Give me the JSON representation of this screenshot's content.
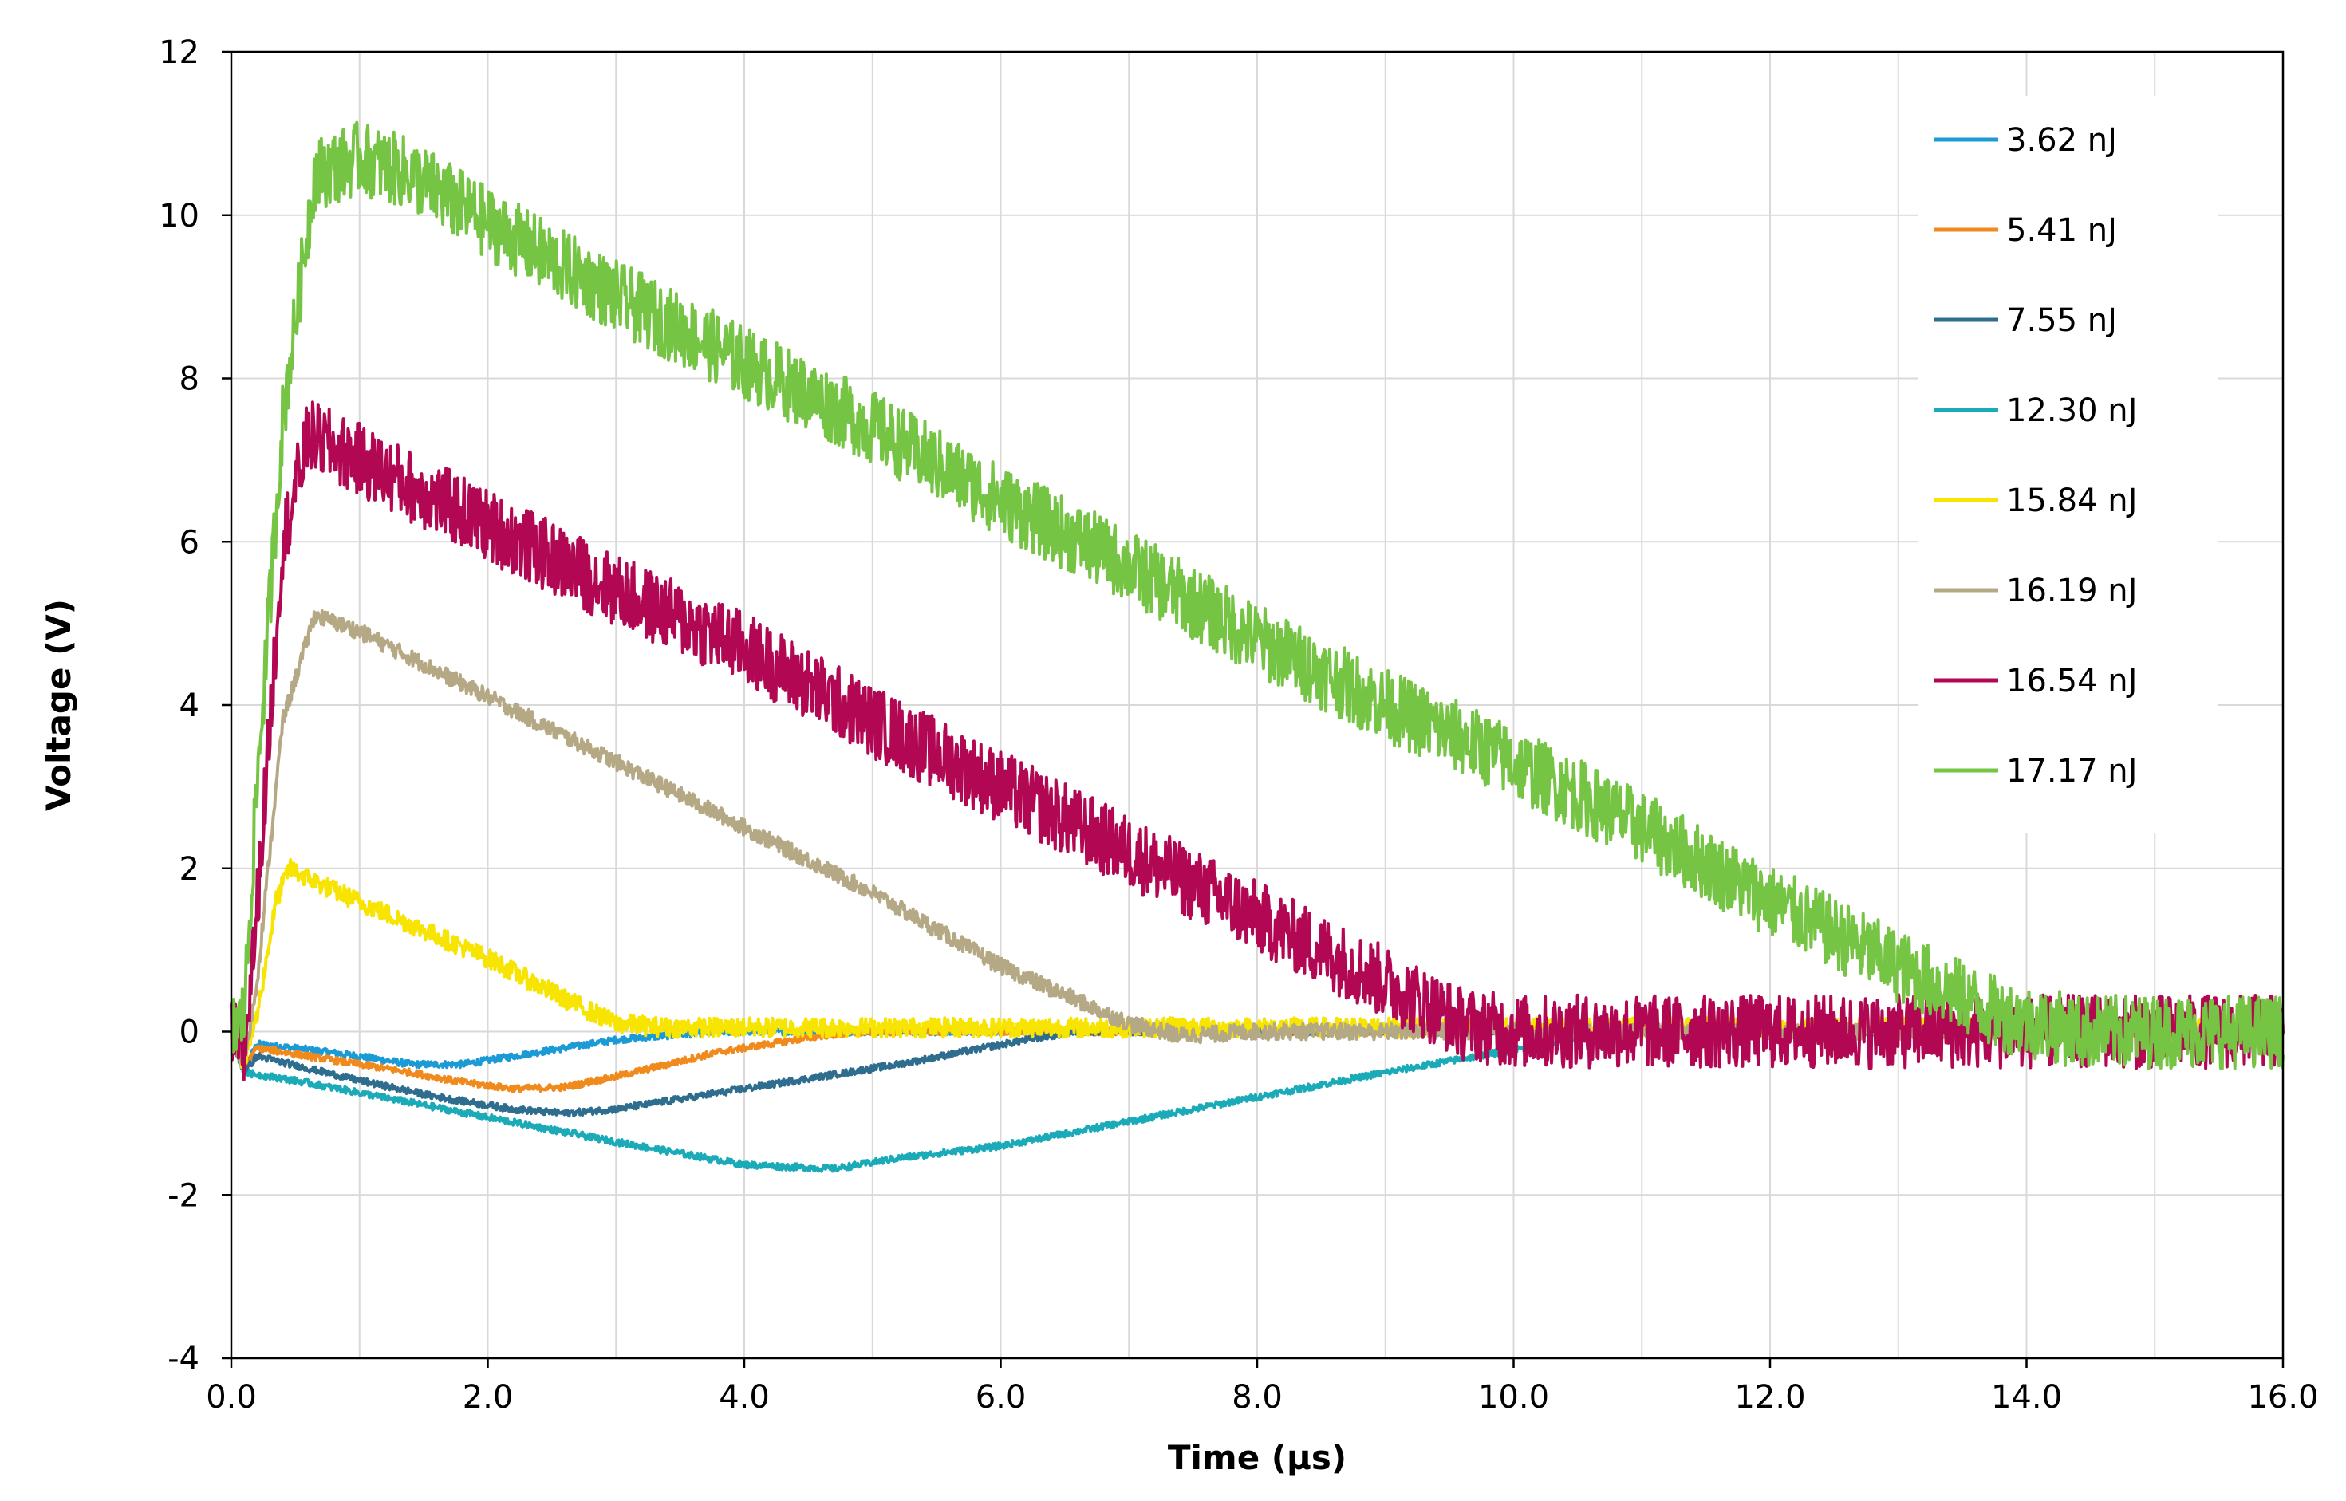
{
  "chart_data": {
    "type": "line",
    "title": "",
    "xlabel": "Time (µs)",
    "ylabel": "Voltage (V)",
    "xlim": [
      0,
      16
    ],
    "ylim": [
      -4,
      12
    ],
    "x_ticks": [
      0,
      2,
      4,
      6,
      8,
      10,
      12,
      14,
      16
    ],
    "x_tick_labels": [
      "0.0",
      "2.0",
      "4.0",
      "6.0",
      "8.0",
      "10.0",
      "12.0",
      "14.0",
      "16.0"
    ],
    "y_ticks": [
      -4,
      -2,
      0,
      2,
      4,
      6,
      8,
      10,
      12
    ],
    "y_tick_labels": [
      "-4",
      "-2",
      "0",
      "2",
      "4",
      "6",
      "8",
      "10",
      "12"
    ],
    "x_minor_gridlines_step": 1,
    "grid": true,
    "legend_position": "top-right",
    "series": [
      {
        "name": "3.62 nJ",
        "color": "#1B9AD6",
        "noise": 0.04,
        "x": [
          0,
          0.05,
          0.1,
          0.2,
          0.6,
          1.0,
          1.4,
          1.8,
          2.2,
          2.6,
          3.0,
          3.4,
          3.8,
          4.2,
          16.0
        ],
        "y": [
          0,
          -0.3,
          -0.45,
          -0.15,
          -0.22,
          -0.3,
          -0.4,
          -0.4,
          -0.3,
          -0.2,
          -0.1,
          -0.05,
          0,
          0,
          0
        ]
      },
      {
        "name": "5.41 nJ",
        "color": "#F08A1C",
        "noise": 0.04,
        "x": [
          0,
          0.05,
          0.1,
          0.2,
          0.6,
          1.0,
          1.4,
          1.8,
          2.2,
          2.6,
          3.0,
          3.4,
          3.8,
          4.2,
          4.6,
          5.0,
          16.0
        ],
        "y": [
          0,
          -0.3,
          -0.45,
          -0.2,
          -0.3,
          -0.4,
          -0.5,
          -0.62,
          -0.7,
          -0.68,
          -0.55,
          -0.4,
          -0.25,
          -0.15,
          -0.05,
          0,
          0
        ]
      },
      {
        "name": "7.55 nJ",
        "color": "#2E6D8E",
        "noise": 0.04,
        "x": [
          0,
          0.05,
          0.1,
          0.2,
          0.6,
          1.0,
          1.6,
          2.2,
          2.6,
          3.0,
          3.4,
          4.0,
          4.6,
          5.2,
          5.8,
          6.2,
          6.6,
          16.0
        ],
        "y": [
          0,
          -0.3,
          -0.5,
          -0.3,
          -0.45,
          -0.6,
          -0.8,
          -0.95,
          -1.0,
          -0.95,
          -0.85,
          -0.7,
          -0.55,
          -0.4,
          -0.22,
          -0.1,
          0,
          0
        ]
      },
      {
        "name": "12.30 nJ",
        "color": "#1AAAB8",
        "noise": 0.04,
        "x": [
          0,
          0.05,
          0.1,
          0.5,
          1.0,
          2.0,
          3.0,
          4.0,
          4.7,
          5.2,
          6.0,
          7.0,
          8.0,
          9.0,
          10.0,
          10.8,
          16.0
        ],
        "y": [
          0,
          -0.3,
          -0.5,
          -0.6,
          -0.75,
          -1.05,
          -1.35,
          -1.63,
          -1.68,
          -1.55,
          -1.4,
          -1.1,
          -0.8,
          -0.5,
          -0.22,
          0,
          0
        ]
      },
      {
        "name": "15.84 nJ",
        "color": "#F7E400",
        "noise": 0.12,
        "x": [
          0,
          0.1,
          0.2,
          0.35,
          0.45,
          0.7,
          1.2,
          2.0,
          2.6,
          3.0,
          3.4,
          16.0
        ],
        "y": [
          0,
          -0.4,
          0.2,
          1.6,
          2.0,
          1.8,
          1.45,
          0.9,
          0.4,
          0.1,
          0.05,
          0.05
        ]
      },
      {
        "name": "16.19 nJ",
        "color": "#B5A884",
        "noise": 0.1,
        "x": [
          0,
          0.1,
          0.2,
          0.4,
          0.65,
          1.0,
          2.0,
          3.0,
          4.0,
          5.0,
          6.0,
          7.0,
          7.4,
          8.0,
          16.0
        ],
        "y": [
          0,
          -0.4,
          0.6,
          3.8,
          5.1,
          4.9,
          4.1,
          3.3,
          2.5,
          1.7,
          0.8,
          0.1,
          -0.05,
          0,
          0
        ]
      },
      {
        "name": "16.54 nJ",
        "color": "#B20853",
        "noise": 0.45,
        "x": [
          0,
          0.1,
          0.2,
          0.4,
          0.6,
          1.0,
          2.0,
          3.0,
          4.0,
          5.0,
          6.0,
          7.0,
          8.0,
          9.0,
          9.6,
          10.0,
          16.0
        ],
        "y": [
          0,
          -0.3,
          1.5,
          6.0,
          7.3,
          7.0,
          6.2,
          5.4,
          4.7,
          3.8,
          3.0,
          2.2,
          1.4,
          0.6,
          0.1,
          0.0,
          0.0
        ]
      },
      {
        "name": "17.17 nJ",
        "color": "#76C443",
        "noise": 0.45,
        "x": [
          0,
          0.1,
          0.2,
          0.4,
          0.65,
          1.0,
          1.4,
          2.0,
          3.0,
          4.0,
          5.0,
          6.0,
          7.0,
          8.0,
          9.0,
          10.0,
          11.0,
          12.0,
          13.0,
          13.8,
          14.4,
          16.0
        ],
        "y": [
          0,
          0.2,
          3.0,
          7.5,
          10.5,
          10.7,
          10.5,
          9.9,
          9.0,
          8.2,
          7.4,
          6.5,
          5.7,
          4.8,
          4.0,
          3.3,
          2.5,
          1.6,
          0.8,
          0.2,
          0.0,
          0.0
        ]
      }
    ]
  }
}
